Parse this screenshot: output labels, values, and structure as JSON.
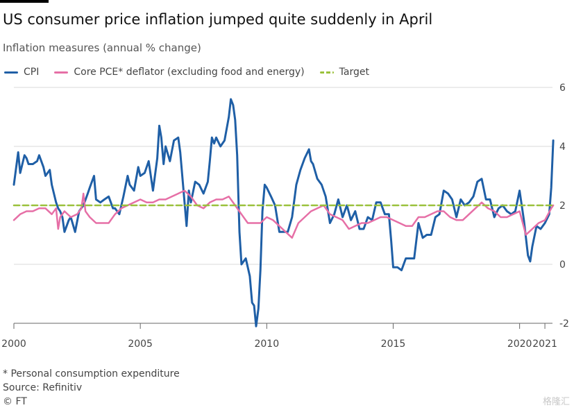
{
  "header": {
    "title": "US consumer price inflation jumped quite suddenly in April",
    "subtitle": "Inflation measures (annual % change)"
  },
  "legend": [
    {
      "label": "CPI",
      "color": "#1f5fa6"
    },
    {
      "label": "Core PCE* deflator (excluding food and energy)",
      "color": "#e66fa6"
    },
    {
      "label": "Target",
      "color": "#9ac13b"
    }
  ],
  "footer": {
    "note": "* Personal consumption expenditure",
    "source": "Source: Refinitiv",
    "copyright": "© FT",
    "watermark": "格隆汇"
  },
  "chart_data": {
    "type": "line",
    "title": "US consumer price inflation jumped quite suddenly in April",
    "ylabel": "Inflation measures (annual % change)",
    "xlim": [
      2000,
      2021.3
    ],
    "ylim": [
      -2,
      6
    ],
    "yticks": [
      -2,
      0,
      2,
      4,
      6
    ],
    "xticks": [
      2000,
      2005,
      2010,
      2015,
      2020,
      2021
    ],
    "xtick_labels": [
      "2000",
      "2005",
      "2010",
      "2015",
      "2020",
      "2021"
    ],
    "grid": "horizontal",
    "series": [
      {
        "name": "CPI",
        "color": "#1f5fa6",
        "x": [
          2000.0,
          2000.17,
          2000.25,
          2000.42,
          2000.5,
          2000.58,
          2000.75,
          2000.92,
          2001.0,
          2001.17,
          2001.25,
          2001.42,
          2001.5,
          2001.67,
          2001.75,
          2001.83,
          2001.92,
          2002.0,
          2002.17,
          2002.25,
          2002.42,
          2002.58,
          2002.75,
          2002.92,
          2003.0,
          2003.17,
          2003.25,
          2003.42,
          2003.58,
          2003.75,
          2003.92,
          2004.0,
          2004.17,
          2004.33,
          2004.5,
          2004.58,
          2004.75,
          2004.92,
          2005.0,
          2005.17,
          2005.33,
          2005.5,
          2005.67,
          2005.75,
          2005.83,
          2005.92,
          2006.0,
          2006.17,
          2006.33,
          2006.5,
          2006.58,
          2006.75,
          2006.83,
          2006.92,
          2007.0,
          2007.17,
          2007.33,
          2007.5,
          2007.67,
          2007.75,
          2007.83,
          2007.92,
          2008.0,
          2008.17,
          2008.33,
          2008.5,
          2008.58,
          2008.67,
          2008.75,
          2008.83,
          2008.92,
          2009.0,
          2009.17,
          2009.33,
          2009.42,
          2009.5,
          2009.58,
          2009.67,
          2009.75,
          2009.83,
          2009.92,
          2010.0,
          2010.17,
          2010.33,
          2010.5,
          2010.67,
          2010.83,
          2011.0,
          2011.17,
          2011.33,
          2011.5,
          2011.67,
          2011.75,
          2011.83,
          2012.0,
          2012.17,
          2012.33,
          2012.5,
          2012.67,
          2012.83,
          2013.0,
          2013.17,
          2013.33,
          2013.5,
          2013.67,
          2013.83,
          2014.0,
          2014.17,
          2014.33,
          2014.5,
          2014.67,
          2014.83,
          2014.92,
          2015.0,
          2015.17,
          2015.33,
          2015.5,
          2015.67,
          2015.83,
          2016.0,
          2016.17,
          2016.33,
          2016.5,
          2016.67,
          2016.83,
          2017.0,
          2017.17,
          2017.33,
          2017.5,
          2017.67,
          2017.83,
          2018.0,
          2018.17,
          2018.33,
          2018.5,
          2018.67,
          2018.83,
          2019.0,
          2019.17,
          2019.33,
          2019.5,
          2019.67,
          2019.83,
          2020.0,
          2020.17,
          2020.33,
          2020.42,
          2020.5,
          2020.67,
          2020.83,
          2021.0,
          2021.17,
          2021.25,
          2021.33
        ],
        "values": [
          2.7,
          3.8,
          3.1,
          3.7,
          3.6,
          3.4,
          3.4,
          3.5,
          3.7,
          3.3,
          3.0,
          3.2,
          2.7,
          2.1,
          1.9,
          1.8,
          1.6,
          1.1,
          1.5,
          1.6,
          1.1,
          1.8,
          2.0,
          2.4,
          2.6,
          3.0,
          2.2,
          2.1,
          2.2,
          2.3,
          1.9,
          1.9,
          1.7,
          2.3,
          3.0,
          2.7,
          2.5,
          3.3,
          3.0,
          3.1,
          3.5,
          2.5,
          3.6,
          4.7,
          4.3,
          3.4,
          4.0,
          3.5,
          4.2,
          4.3,
          3.8,
          2.1,
          1.3,
          2.5,
          2.1,
          2.8,
          2.7,
          2.4,
          2.8,
          3.5,
          4.3,
          4.1,
          4.3,
          4.0,
          4.2,
          5.0,
          5.6,
          5.4,
          4.9,
          3.7,
          1.1,
          0.0,
          0.2,
          -0.4,
          -1.3,
          -1.4,
          -2.1,
          -1.5,
          -0.2,
          1.8,
          2.7,
          2.6,
          2.3,
          2.0,
          1.1,
          1.1,
          1.1,
          1.6,
          2.7,
          3.2,
          3.6,
          3.9,
          3.5,
          3.4,
          2.9,
          2.7,
          2.3,
          1.4,
          1.7,
          2.2,
          1.6,
          2.0,
          1.5,
          1.8,
          1.2,
          1.2,
          1.6,
          1.5,
          2.1,
          2.1,
          1.7,
          1.7,
          0.8,
          -0.1,
          -0.1,
          -0.2,
          0.2,
          0.2,
          0.2,
          1.4,
          0.9,
          1.0,
          1.0,
          1.6,
          1.7,
          2.5,
          2.4,
          2.2,
          1.6,
          2.2,
          2.0,
          2.1,
          2.3,
          2.8,
          2.9,
          2.2,
          2.2,
          1.6,
          1.9,
          2.0,
          1.8,
          1.7,
          1.8,
          2.5,
          1.5,
          0.3,
          0.1,
          0.6,
          1.3,
          1.2,
          1.4,
          1.7,
          2.6,
          4.2
        ]
      },
      {
        "name": "Core PCE* deflator (excluding food and energy)",
        "color": "#e66fa6",
        "x": [
          2000.0,
          2000.25,
          2000.5,
          2000.75,
          2001.0,
          2001.25,
          2001.5,
          2001.67,
          2001.75,
          2001.83,
          2002.0,
          2002.25,
          2002.5,
          2002.67,
          2002.75,
          2002.83,
          2003.0,
          2003.25,
          2003.5,
          2003.75,
          2004.0,
          2004.25,
          2004.5,
          2004.75,
          2005.0,
          2005.25,
          2005.5,
          2005.75,
          2006.0,
          2006.25,
          2006.5,
          2006.75,
          2007.0,
          2007.25,
          2007.5,
          2007.75,
          2008.0,
          2008.25,
          2008.5,
          2008.75,
          2009.0,
          2009.25,
          2009.5,
          2009.75,
          2010.0,
          2010.25,
          2010.5,
          2010.75,
          2011.0,
          2011.25,
          2011.5,
          2011.75,
          2012.0,
          2012.25,
          2012.5,
          2012.75,
          2013.0,
          2013.25,
          2013.5,
          2013.75,
          2014.0,
          2014.25,
          2014.5,
          2014.75,
          2015.0,
          2015.25,
          2015.5,
          2015.75,
          2016.0,
          2016.25,
          2016.5,
          2016.75,
          2017.0,
          2017.25,
          2017.5,
          2017.75,
          2018.0,
          2018.25,
          2018.5,
          2018.75,
          2019.0,
          2019.25,
          2019.5,
          2019.75,
          2020.0,
          2020.25,
          2020.5,
          2020.75,
          2021.0,
          2021.25,
          2021.33
        ],
        "values": [
          1.5,
          1.7,
          1.8,
          1.8,
          1.9,
          1.9,
          1.7,
          1.9,
          1.2,
          1.6,
          1.8,
          1.6,
          1.7,
          1.9,
          2.4,
          1.8,
          1.6,
          1.4,
          1.4,
          1.4,
          1.7,
          1.9,
          2.0,
          2.1,
          2.2,
          2.1,
          2.1,
          2.2,
          2.2,
          2.3,
          2.4,
          2.5,
          2.3,
          2.0,
          1.9,
          2.1,
          2.2,
          2.2,
          2.3,
          2.0,
          1.7,
          1.4,
          1.4,
          1.4,
          1.6,
          1.5,
          1.3,
          1.1,
          0.9,
          1.4,
          1.6,
          1.8,
          1.9,
          2.0,
          1.7,
          1.6,
          1.5,
          1.2,
          1.3,
          1.4,
          1.4,
          1.5,
          1.6,
          1.6,
          1.5,
          1.4,
          1.3,
          1.3,
          1.6,
          1.6,
          1.7,
          1.8,
          1.8,
          1.6,
          1.5,
          1.5,
          1.7,
          1.9,
          2.1,
          1.9,
          1.8,
          1.6,
          1.6,
          1.7,
          1.8,
          1.0,
          1.2,
          1.4,
          1.5,
          1.9,
          2.0
        ]
      },
      {
        "name": "Target",
        "color": "#9ac13b",
        "style": "dashed",
        "x": [
          2000.0,
          2021.3
        ],
        "values": [
          2,
          2
        ]
      }
    ]
  }
}
